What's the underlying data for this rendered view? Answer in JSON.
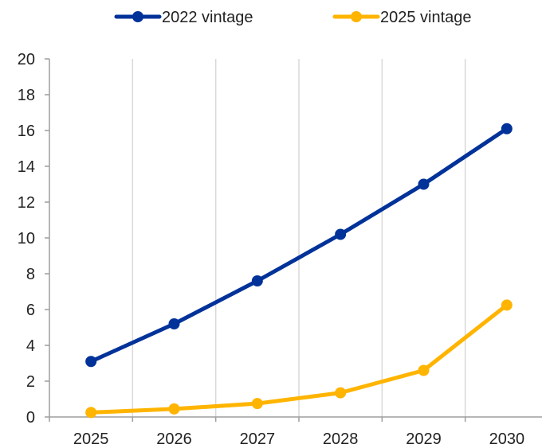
{
  "chart_data": {
    "type": "line",
    "categories": [
      "2025",
      "2026",
      "2027",
      "2028",
      "2029",
      "2030"
    ],
    "series": [
      {
        "name": "2022 vintage",
        "color": "#003299",
        "values": [
          3.1,
          5.2,
          7.6,
          10.2,
          13.0,
          16.1
        ]
      },
      {
        "name": "2025 vintage",
        "color": "#FFB400",
        "values": [
          0.25,
          0.45,
          0.75,
          1.35,
          2.6,
          6.25
        ]
      }
    ],
    "ylim": [
      0,
      20
    ],
    "yticks": [
      0,
      2,
      4,
      6,
      8,
      10,
      12,
      14,
      16,
      18,
      20
    ],
    "grid": "vertical",
    "legend": "top",
    "title": "",
    "xlabel": "",
    "ylabel": ""
  }
}
